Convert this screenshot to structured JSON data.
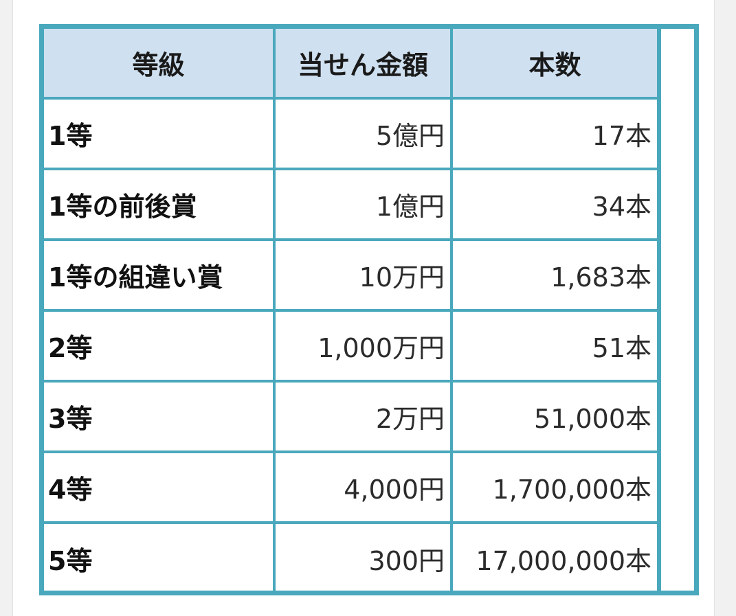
{
  "table": {
    "headers": [
      "等級",
      "当せん金額",
      "本数"
    ],
    "rows": [
      {
        "grade": "1等",
        "amount": "5億円",
        "count": "17本"
      },
      {
        "grade": "1等の前後賞",
        "amount": "1億円",
        "count": "34本"
      },
      {
        "grade": "1等の組違い賞",
        "amount": "10万円",
        "count": "1,683本"
      },
      {
        "grade": "2等",
        "amount": "1,000万円",
        "count": "51本"
      },
      {
        "grade": "3等",
        "amount": "2万円",
        "count": "51,000本"
      },
      {
        "grade": "4等",
        "amount": "4,000円",
        "count": "1,700,000本"
      },
      {
        "grade": "5等",
        "amount": "300円",
        "count": "17,000,000本"
      }
    ]
  },
  "colors": {
    "border": "#4aa8bd",
    "header_background": "#cfe0f0",
    "page_background": "#f1f1f1"
  }
}
